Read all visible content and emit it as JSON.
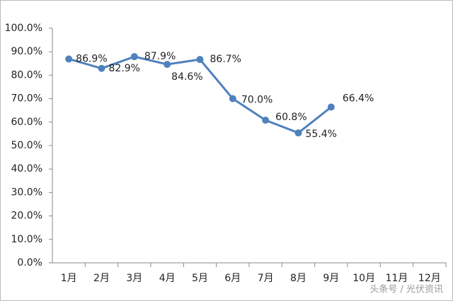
{
  "chart_data": {
    "type": "line",
    "categories": [
      "1月",
      "2月",
      "3月",
      "4月",
      "5月",
      "6月",
      "7月",
      "8月",
      "9月",
      "10月",
      "11月",
      "12月"
    ],
    "series": [
      {
        "color": "#4f81bd",
        "values": [
          86.9,
          82.9,
          87.9,
          84.6,
          86.7,
          70.0,
          60.8,
          55.4,
          66.4,
          null,
          null,
          null
        ],
        "value_labels": [
          "86.9%",
          "82.9%",
          "87.9%",
          "84.6%",
          "86.7%",
          "70.0%",
          "60.8%",
          "55.4%",
          "66.4%",
          null,
          null,
          null
        ]
      }
    ],
    "ylim": [
      0,
      100
    ],
    "yticks": [
      {
        "value": 0,
        "label": "0.0%"
      },
      {
        "value": 10,
        "label": "10.0%"
      },
      {
        "value": 20,
        "label": "20.0%"
      },
      {
        "value": 30,
        "label": "30.0%"
      },
      {
        "value": 40,
        "label": "40.0%"
      },
      {
        "value": 50,
        "label": "50.0%"
      },
      {
        "value": 60,
        "label": "60.0%"
      },
      {
        "value": 70,
        "label": "70.0%"
      },
      {
        "value": 80,
        "label": "80.0%"
      },
      {
        "value": 90,
        "label": "90.0%"
      },
      {
        "value": 100,
        "label": "100.0%"
      }
    ],
    "grid": false,
    "watermark": "头条号 / 光伏资讯"
  }
}
